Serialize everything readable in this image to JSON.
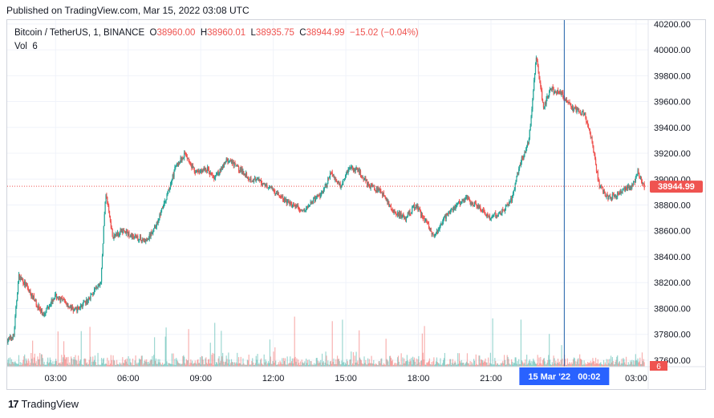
{
  "published": "Published on TradingView.com, Mar 15, 2022 03:08 UTC",
  "legend": {
    "symbol": "Bitcoin / TetherUS, 1, BINANCE",
    "o_label": "O",
    "o": "38960.00",
    "h_label": "H",
    "h": "38960.01",
    "l_label": "L",
    "l": "38935.75",
    "c_label": "C",
    "c": "38944.99",
    "change": "−15.02 (−0.04%)",
    "vol_label": "Vol",
    "vol": "6"
  },
  "footer": {
    "brand": "TradingView",
    "logo": "17"
  },
  "colors": {
    "up": "#26a69a",
    "down": "#ef5350",
    "crosshair": "#1e5fa8",
    "axis_badge": "#2962ff"
  },
  "chart_data": {
    "type": "candlestick",
    "price_ticks": [
      "40200.00",
      "40000.00",
      "39800.00",
      "39600.00",
      "39400.00",
      "39200.00",
      "39000.00",
      "38800.00",
      "38600.00",
      "38400.00",
      "38200.00",
      "38000.00",
      "37800.00",
      "37600.00"
    ],
    "price_ticks_values": [
      40200,
      40000,
      39800,
      39600,
      39400,
      39200,
      39000,
      38800,
      38600,
      38400,
      38200,
      38000,
      37800,
      37600
    ],
    "ylim": [
      37550,
      40230
    ],
    "time_ticks": [
      "03:00",
      "06:00",
      "09:00",
      "12:00",
      "15:00",
      "18:00",
      "21:00",
      "03:00"
    ],
    "time_ticks_hours": [
      3,
      6,
      9,
      12,
      15,
      18,
      21,
      27
    ],
    "xlim_hours": [
      1.0,
      27.5
    ],
    "last_price": "38944.99",
    "last_price_value": 38944.99,
    "volume_last": "6",
    "crosshair_label": "15 Mar '22   00:02",
    "crosshair_hour": 24.03,
    "path": [
      [
        1.0,
        37750
      ],
      [
        1.3,
        37790
      ],
      [
        1.5,
        38250
      ],
      [
        1.8,
        38180
      ],
      [
        2.2,
        38050
      ],
      [
        2.5,
        37950
      ],
      [
        3.0,
        38100
      ],
      [
        3.4,
        38050
      ],
      [
        3.8,
        37980
      ],
      [
        4.3,
        38050
      ],
      [
        4.9,
        38200
      ],
      [
        5.1,
        38900
      ],
      [
        5.4,
        38550
      ],
      [
        5.8,
        38600
      ],
      [
        6.3,
        38550
      ],
      [
        6.8,
        38520
      ],
      [
        7.2,
        38650
      ],
      [
        7.6,
        38850
      ],
      [
        8.0,
        39100
      ],
      [
        8.4,
        39200
      ],
      [
        8.8,
        39050
      ],
      [
        9.3,
        39080
      ],
      [
        9.6,
        39000
      ],
      [
        10.1,
        39150
      ],
      [
        10.5,
        39100
      ],
      [
        11.1,
        39000
      ],
      [
        11.5,
        38980
      ],
      [
        12.0,
        38920
      ],
      [
        12.4,
        38850
      ],
      [
        12.8,
        38800
      ],
      [
        13.3,
        38750
      ],
      [
        13.6,
        38820
      ],
      [
        14.1,
        38900
      ],
      [
        14.4,
        39050
      ],
      [
        14.8,
        38950
      ],
      [
        15.2,
        39100
      ],
      [
        15.6,
        39050
      ],
      [
        16.0,
        38950
      ],
      [
        16.5,
        38900
      ],
      [
        17.0,
        38750
      ],
      [
        17.5,
        38700
      ],
      [
        17.9,
        38800
      ],
      [
        18.4,
        38650
      ],
      [
        18.7,
        38550
      ],
      [
        19.1,
        38700
      ],
      [
        19.6,
        38800
      ],
      [
        20.0,
        38850
      ],
      [
        20.5,
        38780
      ],
      [
        21.0,
        38700
      ],
      [
        21.5,
        38750
      ],
      [
        21.9,
        38850
      ],
      [
        22.2,
        39100
      ],
      [
        22.6,
        39300
      ],
      [
        22.9,
        39950
      ],
      [
        23.2,
        39550
      ],
      [
        23.5,
        39700
      ],
      [
        24.0,
        39650
      ],
      [
        24.4,
        39550
      ],
      [
        24.9,
        39500
      ],
      [
        25.2,
        39300
      ],
      [
        25.5,
        38950
      ],
      [
        25.9,
        38850
      ],
      [
        26.4,
        38900
      ],
      [
        26.9,
        38950
      ],
      [
        27.1,
        39050
      ],
      [
        27.35,
        38945
      ]
    ]
  }
}
